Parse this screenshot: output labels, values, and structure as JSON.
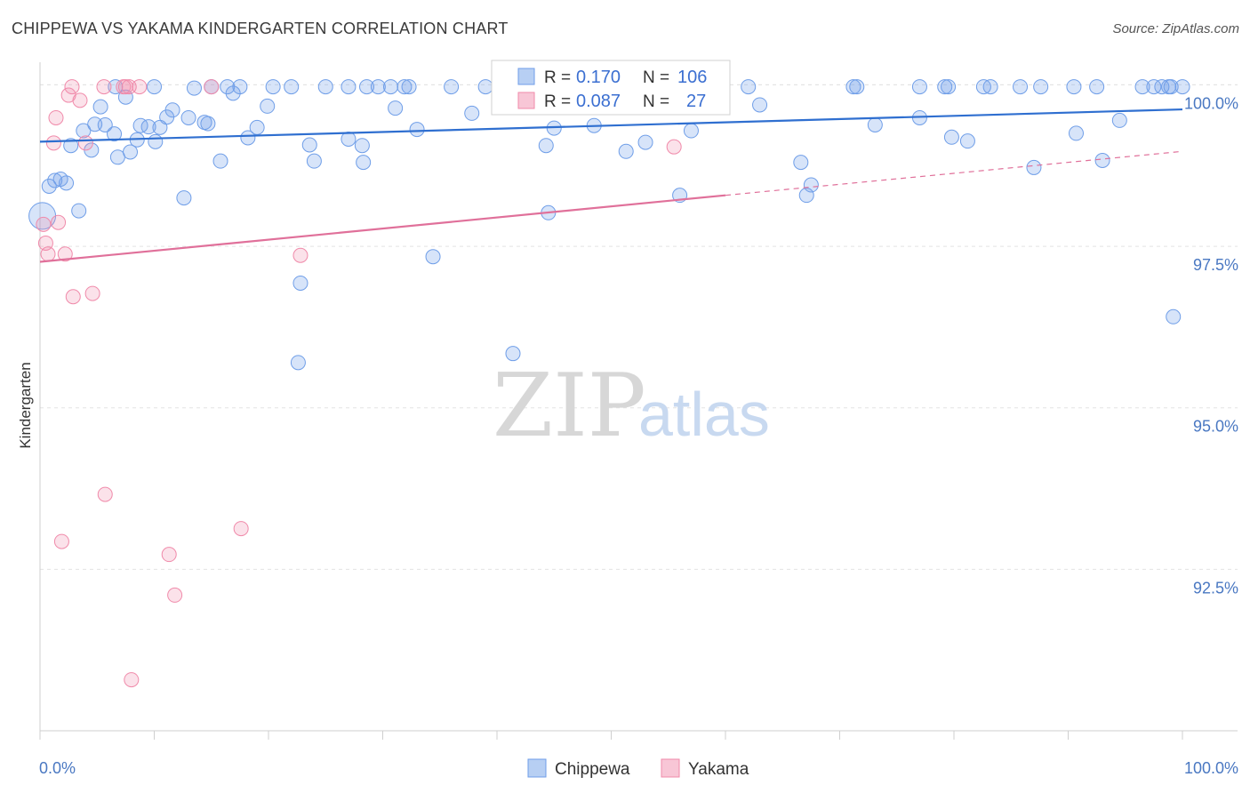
{
  "header": {
    "title": "CHIPPEWA VS YAKAMA KINDERGARTEN CORRELATION CHART",
    "source": "Source: ZipAtlas.com"
  },
  "watermark": {
    "zip": "ZIP",
    "atlas": "atlas"
  },
  "legend_box": {
    "rows": [
      {
        "r_label": "R =",
        "r_value": "0.170",
        "n_label": "N =",
        "n_value": "106"
      },
      {
        "r_label": "R =",
        "r_value": "0.087",
        "n_label": "N =",
        "n_value": "27"
      }
    ]
  },
  "chart_data": {
    "type": "scatter",
    "title": "CHIPPEWA VS YAKAMA KINDERGARTEN CORRELATION CHART",
    "xlabel": "",
    "ylabel": "Kindergarten",
    "xlim": [
      0,
      100
    ],
    "ylim": [
      90.0,
      100.35
    ],
    "x_tick_labels": [
      "0.0%",
      "100.0%"
    ],
    "y_ticks": [
      92.5,
      95.0,
      97.5,
      100.0
    ],
    "y_tick_labels": [
      "92.5%",
      "95.0%",
      "97.5%",
      "100.0%"
    ],
    "grid": true,
    "legend_position": "bottom",
    "colors": {
      "Chippewa": "#6f9ee8",
      "Yakama": "#f08aaa",
      "Chippewa_line": "#2f6fd0",
      "Yakama_line": "#e0709a"
    },
    "series": [
      {
        "name": "Chippewa",
        "r": 0.17,
        "n": 106,
        "trend": {
          "x": [
            0,
            100
          ],
          "y": [
            99.12,
            99.62
          ]
        },
        "points": [
          [
            0.2,
            97.97
          ],
          [
            0.8,
            98.43
          ],
          [
            1.3,
            98.52
          ],
          [
            1.8,
            98.54
          ],
          [
            2.3,
            98.48
          ],
          [
            2.7,
            99.06
          ],
          [
            3.4,
            98.05
          ],
          [
            3.8,
            99.29
          ],
          [
            4.5,
            98.99
          ],
          [
            4.8,
            99.39
          ],
          [
            5.3,
            99.66
          ],
          [
            5.7,
            99.38
          ],
          [
            6.5,
            99.24
          ],
          [
            6.8,
            98.88
          ],
          [
            7.5,
            99.81
          ],
          [
            7.9,
            98.96
          ],
          [
            8.5,
            99.15
          ],
          [
            8.8,
            99.37
          ],
          [
            9.5,
            99.35
          ],
          [
            10.1,
            99.12
          ],
          [
            10.5,
            99.34
          ],
          [
            11.1,
            99.5
          ],
          [
            11.6,
            99.61
          ],
          [
            12.6,
            98.25
          ],
          [
            13.0,
            99.49
          ],
          [
            13.5,
            99.95
          ],
          [
            14.4,
            99.42
          ],
          [
            14.7,
            99.4
          ],
          [
            15.8,
            98.82
          ],
          [
            16.4,
            99.97
          ],
          [
            16.9,
            99.87
          ],
          [
            17.5,
            99.97
          ],
          [
            18.2,
            99.18
          ],
          [
            19.0,
            99.34
          ],
          [
            19.9,
            99.67
          ],
          [
            20.4,
            99.97
          ],
          [
            22.0,
            99.97
          ],
          [
            22.6,
            95.7
          ],
          [
            22.8,
            96.93
          ],
          [
            23.6,
            99.07
          ],
          [
            24.0,
            98.82
          ],
          [
            25.0,
            99.97
          ],
          [
            27.0,
            99.97
          ],
          [
            27.0,
            99.16
          ],
          [
            28.2,
            99.06
          ],
          [
            28.3,
            98.8
          ],
          [
            28.6,
            99.97
          ],
          [
            29.6,
            99.97
          ],
          [
            30.7,
            99.97
          ],
          [
            31.1,
            99.64
          ],
          [
            31.9,
            99.97
          ],
          [
            32.3,
            99.97
          ],
          [
            33.0,
            99.31
          ],
          [
            34.4,
            97.34
          ],
          [
            36.0,
            99.97
          ],
          [
            37.8,
            99.56
          ],
          [
            39.0,
            99.97
          ],
          [
            41.4,
            95.84
          ],
          [
            42.5,
            99.97
          ],
          [
            44.3,
            99.06
          ],
          [
            44.5,
            98.02
          ],
          [
            45.0,
            99.33
          ],
          [
            46.5,
            99.97
          ],
          [
            48.5,
            99.37
          ],
          [
            49.5,
            99.97
          ],
          [
            51.3,
            98.97
          ],
          [
            52.4,
            99.97
          ],
          [
            53.0,
            99.11
          ],
          [
            56.0,
            98.29
          ],
          [
            57.0,
            99.29
          ],
          [
            62.0,
            99.97
          ],
          [
            63.0,
            99.69
          ],
          [
            66.6,
            98.8
          ],
          [
            67.1,
            98.29
          ],
          [
            67.5,
            98.45
          ],
          [
            71.2,
            99.97
          ],
          [
            71.5,
            99.97
          ],
          [
            73.1,
            99.38
          ],
          [
            77.0,
            99.97
          ],
          [
            77.0,
            99.49
          ],
          [
            79.2,
            99.97
          ],
          [
            79.5,
            99.97
          ],
          [
            79.8,
            99.19
          ],
          [
            81.2,
            99.13
          ],
          [
            82.6,
            99.97
          ],
          [
            83.2,
            99.97
          ],
          [
            85.8,
            99.97
          ],
          [
            87.0,
            98.72
          ],
          [
            87.6,
            99.97
          ],
          [
            90.5,
            99.97
          ],
          [
            90.7,
            99.25
          ],
          [
            92.5,
            99.97
          ],
          [
            93.0,
            98.83
          ],
          [
            94.5,
            99.45
          ],
          [
            96.5,
            99.97
          ],
          [
            97.5,
            99.97
          ],
          [
            98.2,
            99.97
          ],
          [
            99.0,
            99.97
          ],
          [
            99.2,
            96.41
          ],
          [
            100.0,
            99.97
          ],
          [
            98.8,
            99.97
          ],
          [
            48.0,
            99.97
          ],
          [
            45.5,
            99.97
          ],
          [
            15.0,
            99.97
          ],
          [
            6.6,
            99.97
          ],
          [
            10.0,
            99.97
          ]
        ]
      },
      {
        "name": "Yakama",
        "r": 0.087,
        "n": 27,
        "trend": {
          "x": [
            0,
            60
          ],
          "y": [
            97.26,
            98.29
          ]
        },
        "trend_extended": {
          "x": [
            60,
            100
          ],
          "y": [
            98.29,
            98.97
          ]
        },
        "points": [
          [
            0.3,
            97.84
          ],
          [
            0.5,
            97.55
          ],
          [
            0.7,
            97.38
          ],
          [
            1.2,
            99.1
          ],
          [
            1.4,
            99.49
          ],
          [
            1.6,
            97.87
          ],
          [
            1.9,
            92.93
          ],
          [
            2.2,
            97.38
          ],
          [
            2.5,
            99.84
          ],
          [
            2.8,
            99.97
          ],
          [
            2.9,
            96.72
          ],
          [
            3.5,
            99.76
          ],
          [
            4.6,
            96.77
          ],
          [
            5.6,
            99.97
          ],
          [
            5.7,
            93.66
          ],
          [
            7.3,
            99.97
          ],
          [
            7.5,
            99.97
          ],
          [
            7.8,
            99.97
          ],
          [
            8.0,
            90.79
          ],
          [
            8.7,
            99.97
          ],
          [
            11.3,
            92.73
          ],
          [
            11.8,
            92.1
          ],
          [
            15.0,
            99.97
          ],
          [
            17.6,
            93.13
          ],
          [
            22.8,
            97.36
          ],
          [
            55.5,
            99.04
          ],
          [
            4.0,
            99.1
          ]
        ]
      }
    ]
  },
  "bottom_legend": {
    "items": [
      "Chippewa",
      "Yakama"
    ]
  }
}
